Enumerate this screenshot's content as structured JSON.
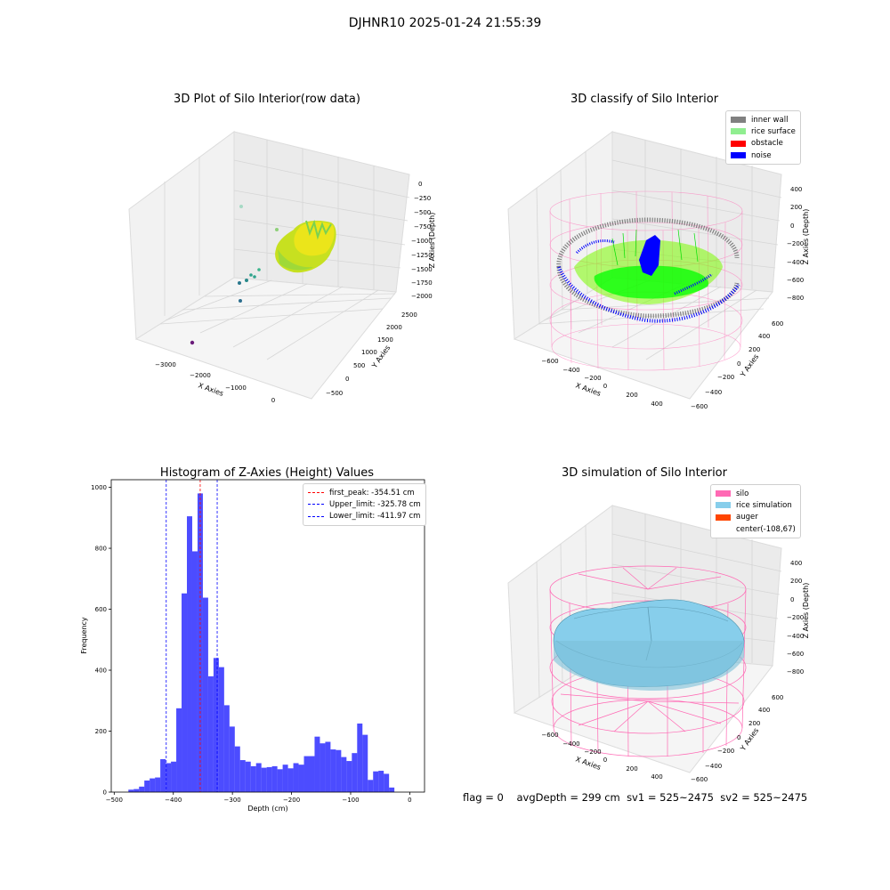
{
  "suptitle": "DJHNR10 2025-01-24 21:55:39",
  "footer": {
    "flag": "flag = 0",
    "avg_depth": "avgDepth = 299 cm",
    "sv1": "sv1 = 525~2475",
    "sv2": "sv2 = 525~2475"
  },
  "chart_data": [
    {
      "type": "scatter",
      "title": "3D Plot of Silo Interior(row data)",
      "xlabel": "X Axies",
      "ylabel": "Y Axies",
      "zlabel": "Z Axies (Depth)",
      "x_ticks": [
        "−3000",
        "−2000",
        "−1000",
        "0"
      ],
      "y_ticks": [
        "−500",
        "0",
        "500",
        "1000",
        "1500",
        "2000",
        "2500"
      ],
      "z_ticks": [
        "0",
        "−250",
        "−500",
        "−750",
        "−1000",
        "−1250",
        "−1500",
        "−1750",
        "−2000"
      ],
      "colormap": "viridis",
      "grid": true
    },
    {
      "type": "scatter",
      "title": "3D classify of Silo Interior",
      "xlabel": "X Axies",
      "ylabel": "Y Axies",
      "zlabel": "Z Axies (Depth)",
      "x_ticks": [
        "−600",
        "−400",
        "−200",
        "0",
        "200",
        "400"
      ],
      "y_ticks": [
        "−600",
        "−400",
        "−200",
        "0",
        "200",
        "400",
        "600"
      ],
      "z_ticks": [
        "400",
        "200",
        "0",
        "−200",
        "−400",
        "−600",
        "−800"
      ],
      "legend": {
        "position": "upper-right",
        "entries": [
          {
            "label": "inner wall",
            "color": "#808080"
          },
          {
            "label": "rice surface",
            "color": "#90ee90"
          },
          {
            "label": "obstacle",
            "color": "#ff0000"
          },
          {
            "label": "noise",
            "color": "#0000ff"
          }
        ]
      },
      "silo_wireframe_color": "#ff69b4",
      "grid": true
    },
    {
      "type": "bar",
      "title": "Histogram of Z-Axies (Height) Values",
      "xlabel": "Depth (cm)",
      "ylabel": "Frequency",
      "xlim": [
        -505,
        25
      ],
      "ylim": [
        0,
        1025
      ],
      "x_ticks": [
        -500,
        -400,
        -300,
        -200,
        -100,
        0
      ],
      "y_ticks": [
        0,
        200,
        400,
        600,
        800,
        1000
      ],
      "bar_color": "#0000ff",
      "bin_edges": [
        -476,
        -467,
        -458,
        -449,
        -440,
        -431,
        -422,
        -413,
        -404,
        -395,
        -386,
        -377,
        -368,
        -359,
        -350,
        -341,
        -332,
        -323,
        -314,
        -305,
        -296,
        -287,
        -278,
        -269,
        -260,
        -251,
        -242,
        -233,
        -224,
        -215,
        -206,
        -197,
        -188,
        -179,
        -170,
        -161,
        -152,
        -143,
        -134,
        -125,
        -116,
        -107,
        -98,
        -89,
        -80,
        -71,
        -62,
        -53,
        -44,
        -35,
        -26,
        -17,
        -8,
        1
      ],
      "values": [
        8,
        10,
        18,
        38,
        45,
        48,
        108,
        95,
        100,
        275,
        652,
        905,
        790,
        980,
        638,
        380,
        440,
        410,
        285,
        215,
        150,
        105,
        100,
        85,
        95,
        80,
        82,
        85,
        75,
        90,
        78,
        95,
        90,
        118,
        118,
        182,
        160,
        165,
        140,
        138,
        115,
        102,
        128,
        225,
        188,
        40,
        68,
        70,
        60,
        15,
        0,
        0,
        0
      ],
      "reference_lines": [
        {
          "label": "first_peak: -354.51 cm",
          "value": -354.51,
          "color": "#ff0000"
        },
        {
          "label": "Upper_limit: -325.78 cm",
          "value": -325.78,
          "color": "#0000ff"
        },
        {
          "label": "Lower_limit: -411.97 cm",
          "value": -411.97,
          "color": "#0000ff"
        }
      ],
      "legend_position": "upper-right",
      "grid": false
    },
    {
      "type": "area",
      "title": "3D simulation of Silo Interior",
      "xlabel": "X Axies",
      "ylabel": "Y Axies",
      "zlabel": "Z Axies (Depth)",
      "x_ticks": [
        "−600",
        "−400",
        "−200",
        "0",
        "200",
        "400"
      ],
      "y_ticks": [
        "−600",
        "−400",
        "−200",
        "0",
        "200",
        "400",
        "600"
      ],
      "z_ticks": [
        "400",
        "200",
        "0",
        "−200",
        "−400",
        "−600",
        "−800"
      ],
      "legend": {
        "position": "upper-right",
        "entries": [
          {
            "label": "silo",
            "color": "#ff69b4"
          },
          {
            "label": "rice simulation",
            "color": "#87ceeb"
          },
          {
            "label": "auger",
            "color": "#ff4500"
          },
          {
            "label": "center(-108,67)",
            "color": ""
          }
        ]
      },
      "grid": true
    }
  ]
}
